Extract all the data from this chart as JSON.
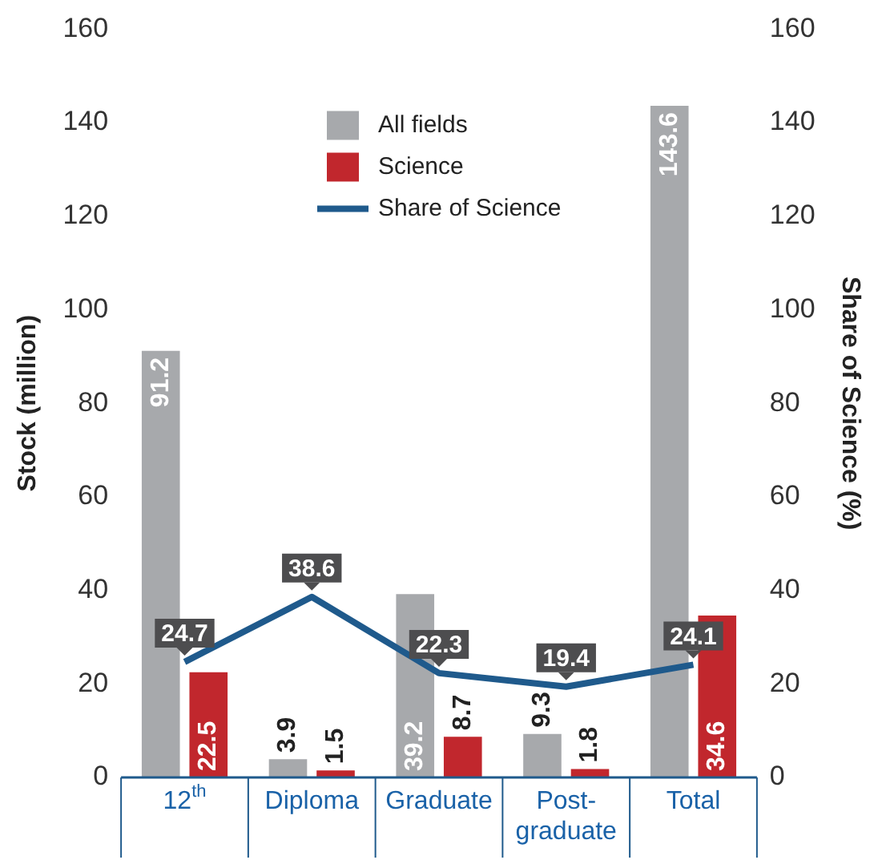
{
  "chart_data": {
    "type": "bar",
    "categories": [
      "12$^{th}$",
      "Diploma",
      "Graduate",
      "Post-graduate",
      "Total"
    ],
    "ylabel": "Stock (million)",
    "y2label": "Share of Science (%)",
    "ylim": [
      0,
      160
    ],
    "yticks": [
      0,
      20,
      40,
      60,
      80,
      100,
      120,
      140,
      160
    ],
    "y2lim": [
      0,
      160
    ],
    "y2ticks": [
      0,
      20,
      40,
      60,
      80,
      100,
      120,
      140,
      160
    ],
    "series": [
      {
        "name": "All fields",
        "color": "#a7a9ac",
        "values": [
          91.2,
          3.9,
          39.2,
          9.3,
          143.6
        ]
      },
      {
        "name": "Science",
        "color": "#c1272d",
        "values": [
          22.5,
          1.5,
          8.7,
          1.8,
          34.6
        ]
      },
      {
        "name": "Share of Science",
        "type": "line",
        "axis": "y2",
        "color": "#1f5a8c",
        "values": [
          24.7,
          38.6,
          22.3,
          19.4,
          24.1
        ]
      }
    ],
    "data_labels": true,
    "grid": false,
    "legend": "top",
    "marker": "none",
    "line_style": "solid"
  }
}
